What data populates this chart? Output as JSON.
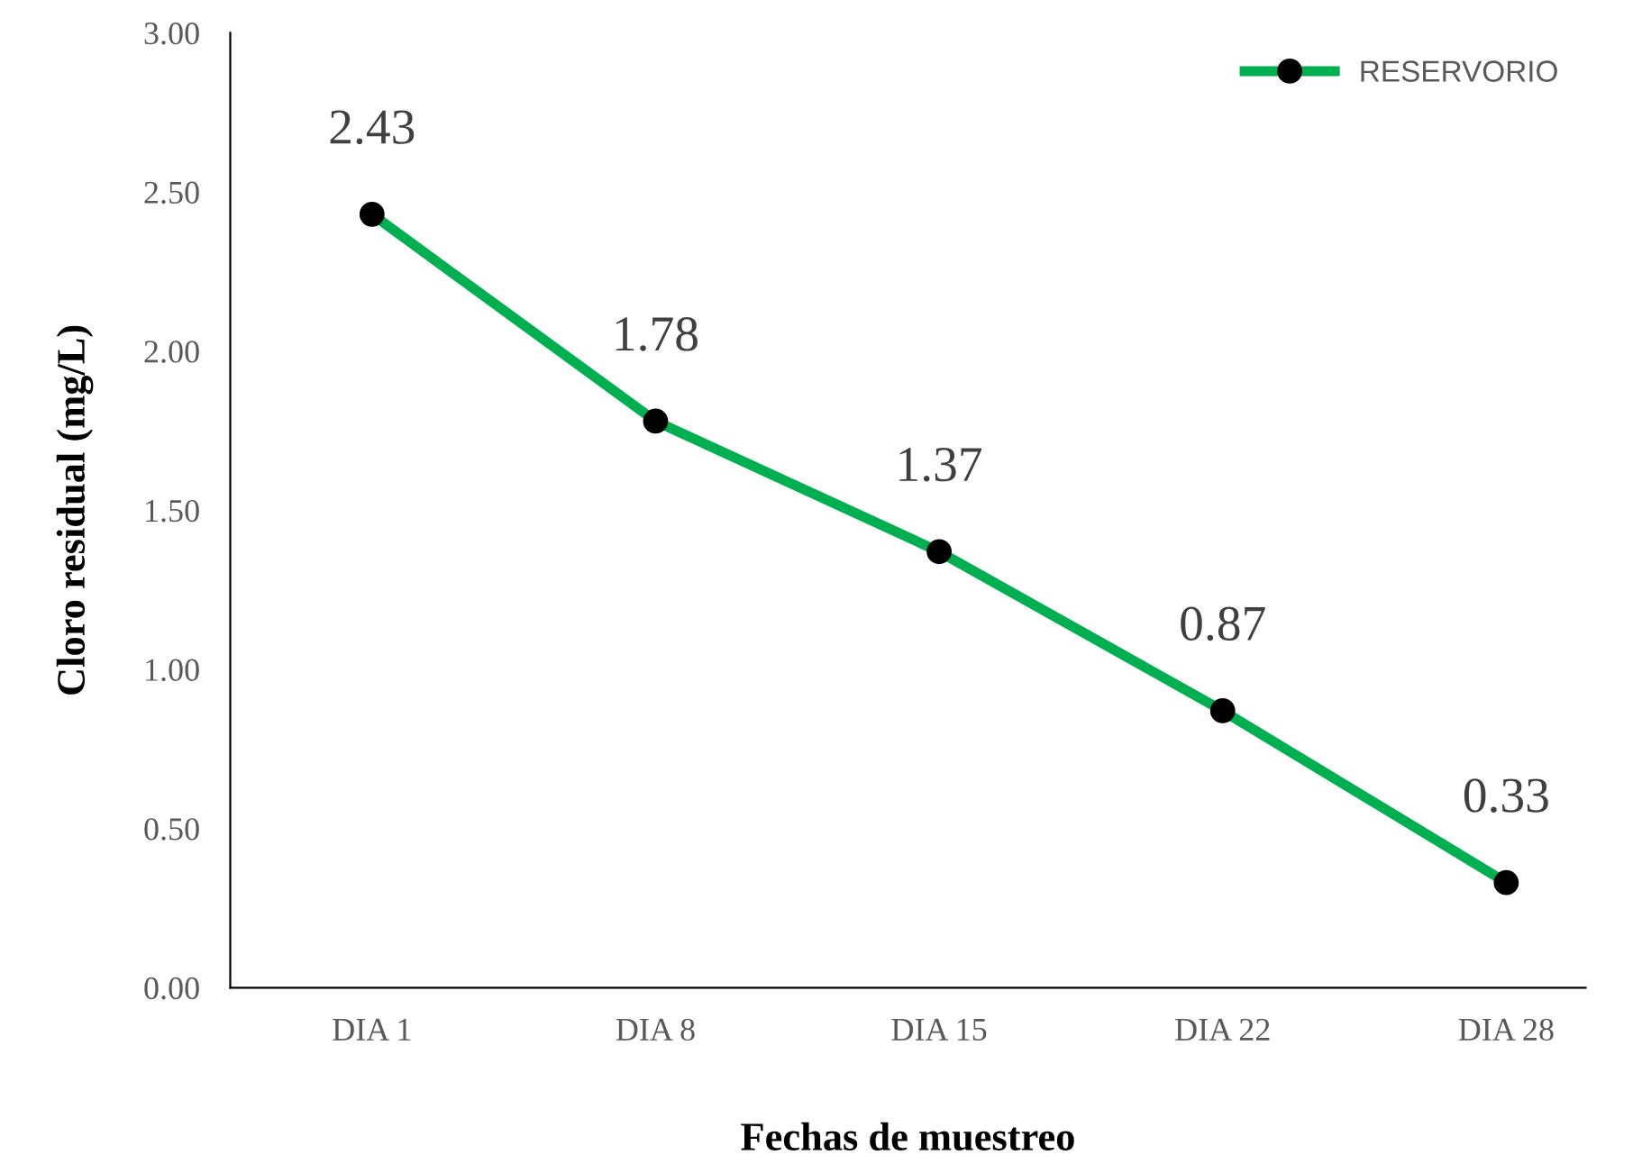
{
  "chart_data": {
    "type": "line",
    "xlabel": "Fechas de muestreo",
    "ylabel": "Cloro residual (mg/L)",
    "categories": [
      "DIA 1",
      "DIA 8",
      "DIA 15",
      "DIA 22",
      "DIA 28"
    ],
    "series": [
      {
        "name": "RESERVORIO",
        "color": "#00b050",
        "values": [
          2.43,
          1.78,
          1.37,
          0.87,
          0.33
        ]
      }
    ],
    "ylim": [
      0,
      3
    ],
    "yticks": [
      {
        "value": 0,
        "label": "0.00"
      },
      {
        "value": 0.5,
        "label": "0.50"
      },
      {
        "value": 1,
        "label": "1.00"
      },
      {
        "value": 1.5,
        "label": "1.50"
      },
      {
        "value": 2,
        "label": "2.00"
      },
      {
        "value": 2.5,
        "label": "2.50"
      },
      {
        "value": 3,
        "label": "3.00"
      }
    ],
    "data_labels": true,
    "grid": false,
    "legend": "top right",
    "marker": "circle",
    "line_style": "solid"
  }
}
